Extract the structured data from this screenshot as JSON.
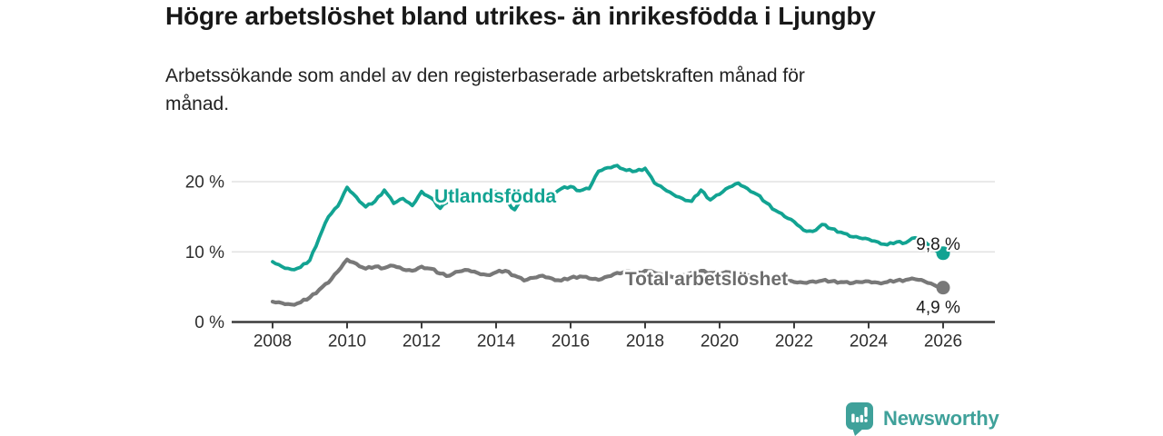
{
  "header": {
    "title": "Högre arbetslöshet bland utrikes- än inrikesfödda i Ljungby",
    "subtitle": "Arbetssökande som andel av den registerbaserade arbetskraften månad för månad.",
    "subtitle_lines": [
      "Arbetssökande som andel av den registerbaserade arbetskraften månad för",
      "månad."
    ]
  },
  "footer": {
    "brand": "Newsworthy",
    "logo_icon": "bar-chart-speech-bubble-icon"
  },
  "colors": {
    "foreign_born_line": "#12a392",
    "total_line": "#787878",
    "total_label": "#6c6c6c",
    "grid": "#dcdcdc",
    "axis": "#3c3c3c",
    "tick_text": "#2e2e2e",
    "end_label_text": "#1a1a1a",
    "brand_teal": "#3fa19a",
    "background": "#ffffff"
  },
  "chart_data": {
    "type": "line",
    "unit": "%",
    "x_axis": {
      "ticks": [
        2008,
        2010,
        2012,
        2014,
        2016,
        2018,
        2020,
        2022,
        2024,
        2026
      ],
      "range": [
        2006.9,
        2027.4
      ]
    },
    "y_axis": {
      "tick_values": [
        0,
        10,
        20
      ],
      "tick_labels": [
        "0 %",
        "10 %",
        "20 %"
      ],
      "range": [
        0,
        24
      ],
      "grid": true
    },
    "x_start": 2008.0,
    "x_step": 0.25,
    "series": [
      {
        "name": "Utlandsfödda",
        "color": "#12a392",
        "stroke_width": 3.8,
        "end_value": 9.8,
        "end_label": "9,8 %",
        "label_pos": {
          "year": 2012.34,
          "pct": 17.8,
          "anchor": "start"
        },
        "end_label_pos": {
          "year": 2026.46,
          "pct": 11.1,
          "anchor": "end"
        },
        "values": [
          8.6,
          7.9,
          7.5,
          7.8,
          8.8,
          12.0,
          15.0,
          16.5,
          19.2,
          17.8,
          16.4,
          17.2,
          18.8,
          16.9,
          17.6,
          16.6,
          18.6,
          17.7,
          16.2,
          17.6,
          18.0,
          17.6,
          18.2,
          17.8,
          18.6,
          17.3,
          16.0,
          18.0,
          18.2,
          18.5,
          18.3,
          19.0,
          19.3,
          18.7,
          19.0,
          21.5,
          22.0,
          22.3,
          21.6,
          21.5,
          21.9,
          19.8,
          19.0,
          18.2,
          17.6,
          17.2,
          18.8,
          17.4,
          18.2,
          19.2,
          19.8,
          19.0,
          18.2,
          17.0,
          15.9,
          15.0,
          14.3,
          13.1,
          12.9,
          13.9,
          13.3,
          12.8,
          12.2,
          12.0,
          11.8,
          11.4,
          11.0,
          11.4,
          11.3,
          12.0,
          11.5,
          10.4,
          9.8
        ]
      },
      {
        "name": "Total arbetslöshet",
        "color": "#787878",
        "label_color": "#6c6c6c",
        "stroke_width": 4.2,
        "end_value": 4.9,
        "end_label": "4,9 %",
        "label_pos": {
          "year": 2017.46,
          "pct": 6.0,
          "anchor": "start"
        },
        "end_label_pos": {
          "year": 2026.46,
          "pct": 2.1,
          "anchor": "end"
        },
        "values": [
          2.9,
          2.7,
          2.5,
          2.8,
          3.5,
          4.6,
          5.6,
          7.2,
          8.9,
          8.3,
          7.6,
          7.9,
          7.7,
          8.0,
          7.5,
          7.3,
          7.9,
          7.6,
          6.9,
          6.6,
          7.2,
          7.4,
          7.0,
          6.7,
          7.1,
          7.3,
          6.6,
          5.9,
          6.3,
          6.6,
          6.2,
          5.9,
          6.3,
          6.5,
          6.2,
          6.0,
          6.5,
          7.0,
          7.2,
          6.8,
          7.3,
          7.0,
          6.6,
          6.4,
          6.7,
          7.0,
          7.3,
          7.0,
          6.9,
          7.1,
          7.0,
          6.7,
          6.5,
          6.3,
          6.1,
          5.9,
          5.7,
          5.6,
          5.8,
          5.9,
          5.8,
          5.7,
          5.5,
          5.7,
          5.8,
          5.6,
          5.7,
          5.9,
          6.0,
          6.1,
          5.8,
          5.3,
          4.9
        ]
      }
    ]
  }
}
